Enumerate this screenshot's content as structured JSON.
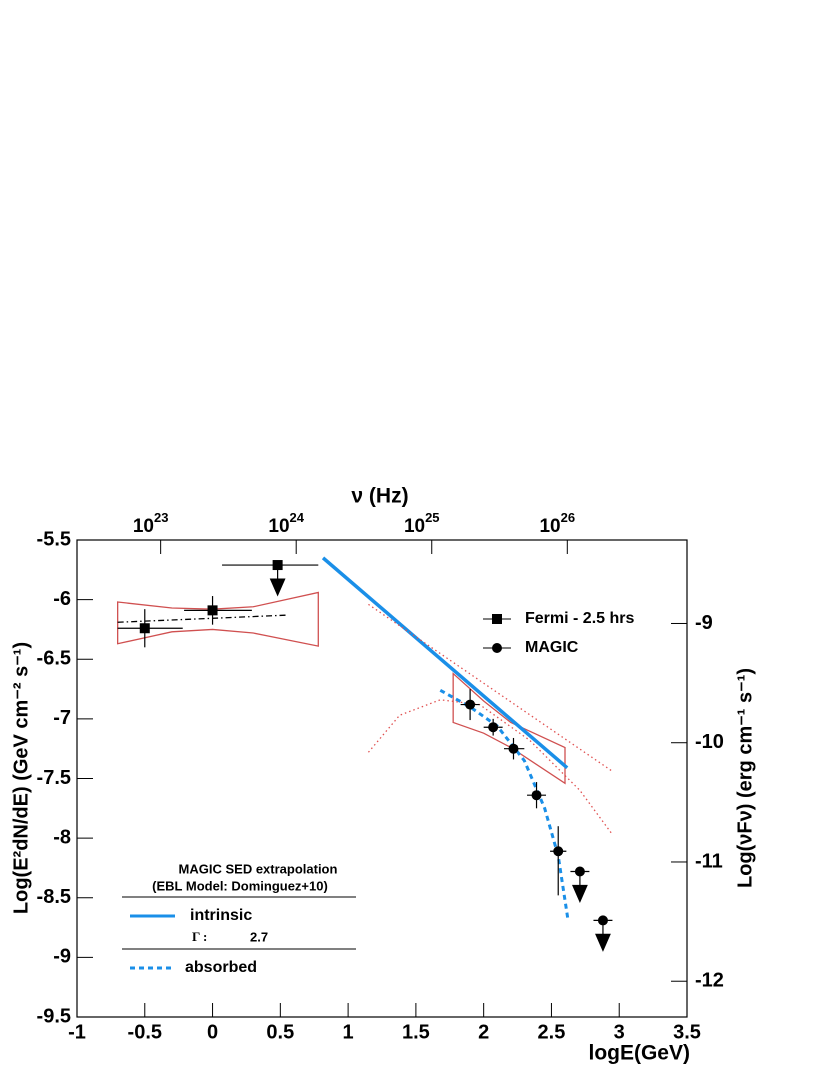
{
  "chart_data": {
    "type": "scatter",
    "x_label": "logE(GeV)",
    "y_label": "Log(E²dN/dE) (GeV cm⁻² s⁻¹)",
    "y2_label": "Log(νFν) (erg cm⁻¹ s⁻¹)",
    "x2_label": "ν (Hz)",
    "xlim": [
      -1,
      3.5
    ],
    "xticks": [
      -1,
      -0.5,
      0,
      0.5,
      1,
      1.5,
      2,
      2.5,
      3,
      3.5
    ],
    "ylim": [
      -9.5,
      -5.5
    ],
    "yticks": [
      -9.5,
      -9,
      -8.5,
      -8,
      -7.5,
      -7,
      -6.5,
      -6,
      -5.5
    ],
    "y2lim": [
      -12.3,
      -8.3
    ],
    "y2ticks": [
      -12,
      -11,
      -10,
      -9
    ],
    "x2lim": [
      2.415e+22,
      7.64e+26
    ],
    "x2scale": "log",
    "x2ticks": [
      {
        "value": 1e+23,
        "label": "10",
        "exponent": "23"
      },
      {
        "value": 1e+24,
        "label": "10",
        "exponent": "24"
      },
      {
        "value": 1e+25,
        "label": "10",
        "exponent": "25"
      },
      {
        "value": 1e+26,
        "label": "10",
        "exponent": "26"
      }
    ],
    "series": [
      {
        "name": "Fermi - 2.5 hrs",
        "marker": "square",
        "color": "#000000",
        "x": [
          -0.5,
          0
        ],
        "values": [
          -6.24,
          -6.09
        ],
        "xerr_minus": [
          0.2,
          0.21
        ],
        "xerr_plus": [
          0.28,
          0.29
        ],
        "yerr_minus": [
          0.16,
          0.12
        ],
        "yerr_plus": [
          0.16,
          0.12
        ],
        "upper_limits": {
          "x": [
            0.48
          ],
          "values": [
            -5.71
          ],
          "xerr_minus": [
            0.41
          ],
          "xerr_plus": [
            0.3
          ]
        }
      },
      {
        "name": "MAGIC",
        "marker": "circle",
        "color": "#000000",
        "x": [
          1.9,
          2.07,
          2.22,
          2.39,
          2.55
        ],
        "values": [
          -6.88,
          -7.07,
          -7.25,
          -7.64,
          -8.11
        ],
        "xerr_minus": [
          0.07,
          0.07,
          0.07,
          0.07,
          0.06
        ],
        "xerr_plus": [
          0.07,
          0.07,
          0.08,
          0.07,
          0.06
        ],
        "yerr_minus": [
          0.13,
          0.07,
          0.09,
          0.11,
          0.37
        ],
        "yerr_plus": [
          0.13,
          0.07,
          0.09,
          0.11,
          0.21
        ],
        "upper_limits": {
          "x": [
            2.71,
            2.88
          ],
          "values": [
            -8.28,
            -8.69
          ],
          "xerr_minus": [
            0.07,
            0.07
          ],
          "xerr_plus": [
            0.07,
            0.07
          ]
        }
      }
    ],
    "curves": [
      {
        "name": "intrinsic",
        "color": "#1a8fe8",
        "style": "solid",
        "x": [
          0.815,
          2.616
        ],
        "values": [
          -5.65,
          -7.41
        ]
      },
      {
        "name": "absorbed",
        "color": "#1a8fe8",
        "style": "dashed",
        "x": [
          1.68,
          1.9,
          2.1,
          2.3,
          2.45,
          2.55,
          2.62
        ],
        "values": [
          -6.76,
          -6.9,
          -7.06,
          -7.35,
          -7.75,
          -8.15,
          -8.67
        ]
      },
      {
        "color": "#000000",
        "style": "dashdot",
        "x": [
          -0.7,
          0.55
        ],
        "values": [
          -6.19,
          -6.13
        ]
      },
      {
        "color": "#e05050",
        "style": "dotted",
        "x": [
          1.15,
          2.95
        ],
        "values": [
          -6.04,
          -7.44
        ]
      },
      {
        "color": "#e05050",
        "style": "dotted",
        "x": [
          1.15,
          1.38,
          1.68,
          1.97,
          2.34,
          2.71,
          2.95
        ],
        "values": [
          -7.28,
          -6.97,
          -6.84,
          -6.88,
          -7.18,
          -7.6,
          -7.97
        ]
      }
    ],
    "bands": [
      {
        "color": "#d05050",
        "x": [
          -0.7,
          -0.3,
          0,
          0.3,
          0.78,
          0.78,
          0.3,
          0,
          -0.3,
          -0.7
        ],
        "values": [
          -6.02,
          -6.07,
          -6.08,
          -6.06,
          -5.94,
          -6.39,
          -6.28,
          -6.25,
          -6.27,
          -6.37
        ]
      },
      {
        "color": "#d05050",
        "x": [
          1.775,
          2.0,
          2.2,
          2.6,
          2.6,
          2.2,
          2.0,
          1.775
        ],
        "values": [
          -6.62,
          -6.85,
          -7.03,
          -7.24,
          -7.54,
          -7.24,
          -7.12,
          -7.03
        ]
      }
    ],
    "extrapolation_legend": {
      "title": "MAGIC SED extrapolation",
      "subtitle": "(EBL Model: Dominguez+10)",
      "gamma_label": "Γ :",
      "gamma": 2.7
    }
  }
}
